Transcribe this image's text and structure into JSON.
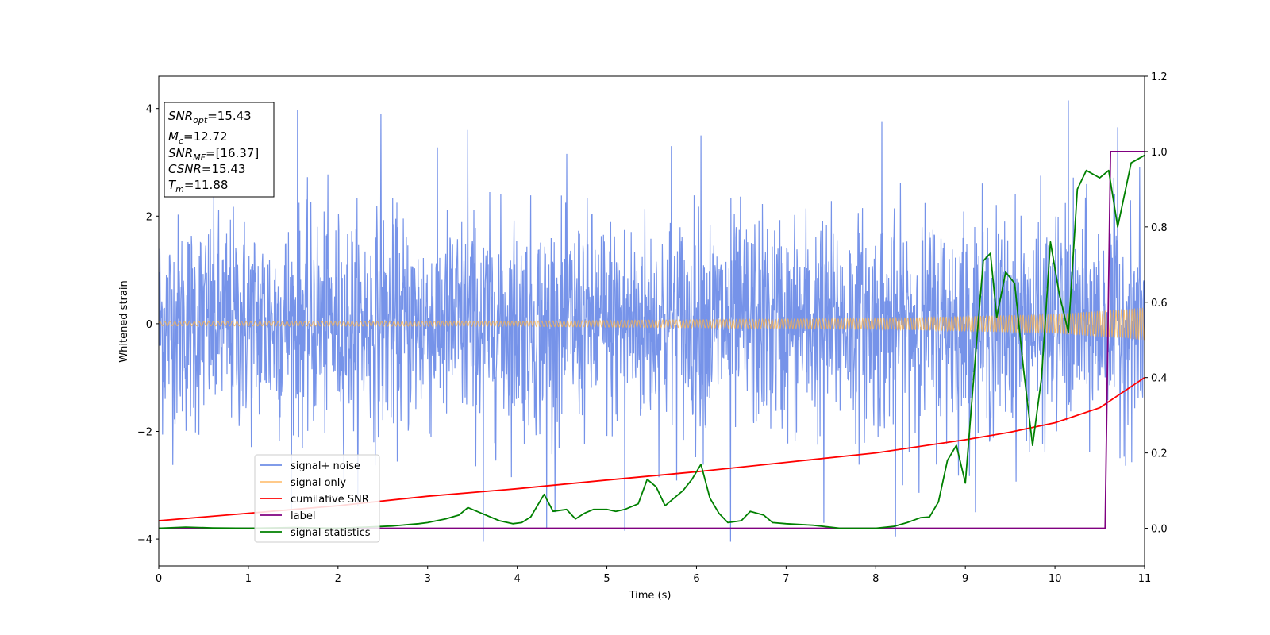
{
  "chart_data": {
    "type": "line",
    "xlabel": "Time (s)",
    "ylabel": "Whitened strain",
    "xlim": [
      0,
      11
    ],
    "ylim_left": [
      -4.5,
      4.6
    ],
    "ylim_right": [
      -0.1,
      1.2
    ],
    "x_ticks": [
      "0",
      "1",
      "2",
      "3",
      "4",
      "5",
      "6",
      "7",
      "8",
      "9",
      "10",
      "11"
    ],
    "y_ticks_left": [
      "4",
      "2",
      "0",
      "−2",
      "−4"
    ],
    "y_ticks_right": [
      "1.2",
      "1.0",
      "0.8",
      "0.6",
      "0.4",
      "0.2",
      "0.0"
    ],
    "grid": false,
    "legend_position": "lower-left",
    "colors": {
      "signal_noise": "#4169e1",
      "signal_only": "#ffb347",
      "cumulative_snr": "#ff0000",
      "label": "#800080",
      "signal_statistics": "#008000"
    },
    "annotation": {
      "snr_opt": {
        "main": "SNR",
        "sub": "opt",
        "value": "=15.43"
      },
      "mc": {
        "main": "M",
        "sub": "c",
        "value": "=12.72"
      },
      "snr_mf": {
        "main": "SNR",
        "sub": "MF",
        "value": "=[16.37]"
      },
      "csnr": {
        "main": "CSNR",
        "value": "=15.43"
      },
      "tm": {
        "main": "T",
        "sub": "m",
        "value": "=11.88"
      }
    },
    "series": [
      {
        "name": "signal+ noise",
        "axis": "left",
        "description_values": {
          "amplitude_std": 1.0,
          "min": -4.1,
          "max": 4.2
        },
        "peaks": [
          [
            1.55,
            3.97
          ],
          [
            2.48,
            3.9
          ],
          [
            3.45,
            3.6
          ],
          [
            5.72,
            3.3
          ],
          [
            6.05,
            3.5
          ],
          [
            8.07,
            3.75
          ],
          [
            10.15,
            4.15
          ],
          [
            10.7,
            3.65
          ],
          [
            3.62,
            -4.05
          ],
          [
            6.38,
            -4.05
          ],
          [
            5.2,
            -3.85
          ],
          [
            8.22,
            -3.95
          ],
          [
            4.33,
            -3.8
          ],
          [
            7.42,
            -3.7
          ]
        ]
      },
      {
        "name": "signal only",
        "axis": "left",
        "envelope": [
          [
            0,
            0.04
          ],
          [
            4,
            0.05
          ],
          [
            8,
            0.1
          ],
          [
            10,
            0.18
          ],
          [
            11,
            0.3
          ]
        ]
      },
      {
        "name": "cumilative SNR",
        "axis": "right",
        "x": [
          0,
          1,
          2,
          3,
          4,
          5,
          6,
          7,
          8,
          9,
          9.5,
          10,
          10.5,
          11
        ],
        "y": [
          0.02,
          0.04,
          0.06,
          0.085,
          0.105,
          0.128,
          0.15,
          0.175,
          0.2,
          0.235,
          0.255,
          0.28,
          0.32,
          0.4
        ]
      },
      {
        "name": "label",
        "axis": "right",
        "x": [
          0,
          10.56,
          10.62,
          11
        ],
        "y": [
          0.0,
          0.0,
          1.0,
          1.0
        ]
      },
      {
        "name": "signal statistics",
        "axis": "right",
        "x": [
          0,
          0.3,
          0.6,
          1,
          1.5,
          2,
          2.3,
          2.6,
          2.9,
          3.0,
          3.2,
          3.35,
          3.45,
          3.6,
          3.8,
          3.95,
          4.05,
          4.15,
          4.3,
          4.4,
          4.55,
          4.65,
          4.75,
          4.85,
          5.0,
          5.1,
          5.2,
          5.35,
          5.45,
          5.55,
          5.65,
          5.75,
          5.85,
          5.95,
          6.05,
          6.15,
          6.25,
          6.35,
          6.5,
          6.6,
          6.75,
          6.85,
          7.0,
          7.3,
          7.6,
          8.0,
          8.2,
          8.35,
          8.5,
          8.6,
          8.7,
          8.8,
          8.9,
          9.0,
          9.1,
          9.2,
          9.28,
          9.35,
          9.45,
          9.55,
          9.65,
          9.75,
          9.85,
          9.95,
          10.05,
          10.15,
          10.25,
          10.35,
          10.5,
          10.6,
          10.7,
          10.85,
          11.0
        ],
        "y": [
          0.0,
          0.003,
          0.001,
          0.0,
          0.002,
          0.0,
          0.003,
          0.006,
          0.012,
          0.015,
          0.025,
          0.035,
          0.055,
          0.04,
          0.02,
          0.012,
          0.015,
          0.03,
          0.09,
          0.045,
          0.05,
          0.025,
          0.04,
          0.05,
          0.05,
          0.045,
          0.05,
          0.065,
          0.13,
          0.11,
          0.06,
          0.08,
          0.1,
          0.13,
          0.17,
          0.08,
          0.04,
          0.015,
          0.02,
          0.045,
          0.035,
          0.015,
          0.012,
          0.008,
          0.0,
          0.0,
          0.005,
          0.015,
          0.028,
          0.03,
          0.07,
          0.18,
          0.22,
          0.12,
          0.42,
          0.71,
          0.73,
          0.56,
          0.68,
          0.65,
          0.42,
          0.22,
          0.4,
          0.76,
          0.62,
          0.52,
          0.9,
          0.95,
          0.93,
          0.95,
          0.8,
          0.97,
          0.99
        ]
      }
    ]
  },
  "legend": [
    {
      "name": "signal+ noise",
      "color": "#6f8ee6"
    },
    {
      "name": "signal only",
      "color": "#ffc27a"
    },
    {
      "name": "cumilative SNR",
      "color": "#ff0000"
    },
    {
      "name": "label",
      "color": "#800080"
    },
    {
      "name": "signal statistics",
      "color": "#008000"
    }
  ]
}
